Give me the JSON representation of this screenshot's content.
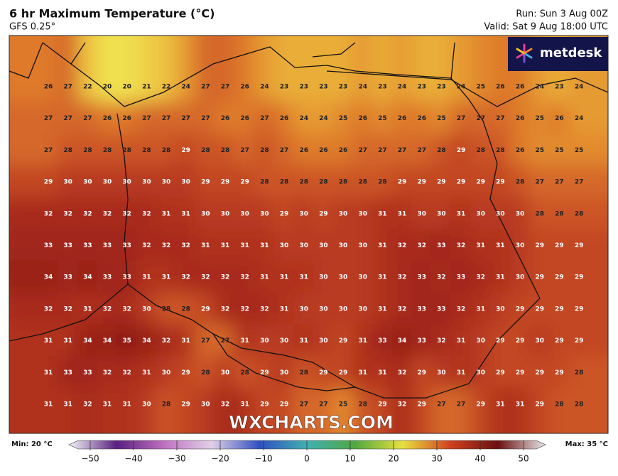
{
  "header": {
    "title": "6 hr Maximum Temperature (°C)",
    "model": "GFS 0.25°",
    "run": "Run: Sun 3 Aug 00Z",
    "valid": "Valid: Sat 9 Aug 18:00 UTC"
  },
  "logo": "metdesk",
  "watermark": "WXCHARTS.COM",
  "map": {
    "rows": [
      [
        26,
        27,
        22,
        20,
        20,
        21,
        22,
        24,
        27,
        27,
        26,
        24,
        23,
        23,
        23,
        23,
        24,
        23,
        24,
        23,
        23,
        24,
        25,
        26,
        26,
        24,
        23,
        24
      ],
      [
        27,
        27,
        27,
        26,
        26,
        27,
        27,
        27,
        27,
        26,
        26,
        27,
        26,
        24,
        24,
        25,
        26,
        25,
        26,
        26,
        25,
        27,
        27,
        27,
        26,
        25,
        26,
        24
      ],
      [
        27,
        28,
        28,
        28,
        28,
        28,
        28,
        29,
        28,
        28,
        27,
        28,
        27,
        26,
        26,
        26,
        27,
        27,
        27,
        27,
        28,
        29,
        28,
        28,
        26,
        25,
        25,
        25
      ],
      [
        29,
        30,
        30,
        30,
        30,
        30,
        30,
        30,
        29,
        29,
        29,
        28,
        28,
        28,
        28,
        28,
        28,
        28,
        29,
        29,
        29,
        29,
        29,
        29,
        28,
        27,
        27,
        27
      ],
      [
        32,
        32,
        32,
        32,
        32,
        32,
        31,
        31,
        30,
        30,
        30,
        30,
        29,
        30,
        29,
        30,
        30,
        31,
        31,
        30,
        30,
        31,
        30,
        30,
        30,
        28,
        28,
        28
      ],
      [
        33,
        33,
        33,
        33,
        33,
        32,
        32,
        32,
        31,
        31,
        31,
        31,
        30,
        30,
        30,
        30,
        30,
        31,
        32,
        32,
        33,
        32,
        31,
        31,
        30,
        29,
        29,
        29
      ],
      [
        34,
        33,
        34,
        33,
        33,
        31,
        31,
        32,
        32,
        32,
        32,
        31,
        31,
        31,
        30,
        30,
        30,
        31,
        32,
        33,
        32,
        33,
        32,
        31,
        30,
        29,
        29,
        29
      ],
      [
        32,
        32,
        31,
        32,
        32,
        30,
        28,
        28,
        29,
        32,
        32,
        32,
        31,
        30,
        30,
        30,
        30,
        31,
        32,
        33,
        33,
        32,
        31,
        30,
        29,
        29,
        29,
        29
      ],
      [
        31,
        31,
        34,
        34,
        35,
        34,
        32,
        31,
        27,
        27,
        31,
        30,
        30,
        31,
        30,
        29,
        31,
        33,
        34,
        33,
        32,
        31,
        30,
        29,
        29,
        30,
        29,
        29
      ],
      [
        31,
        33,
        33,
        32,
        32,
        31,
        30,
        29,
        28,
        30,
        28,
        29,
        30,
        28,
        29,
        29,
        31,
        31,
        32,
        29,
        30,
        31,
        30,
        29,
        29,
        29,
        29,
        28
      ],
      [
        31,
        31,
        32,
        31,
        31,
        30,
        28,
        29,
        30,
        32,
        31,
        29,
        29,
        27,
        27,
        25,
        28,
        29,
        32,
        29,
        27,
        27,
        29,
        31,
        31,
        29,
        28,
        28
      ]
    ]
  },
  "legend": {
    "min": "Min: 20 °C",
    "max": "Max: 35 °C",
    "ticks": [
      {
        "value": -50,
        "label": "−50"
      },
      {
        "value": -40,
        "label": "−40"
      },
      {
        "value": -30,
        "label": "−30"
      },
      {
        "value": -20,
        "label": "−20"
      },
      {
        "value": -10,
        "label": "−10"
      },
      0,
      10,
      20,
      30,
      40,
      50
    ]
  }
}
